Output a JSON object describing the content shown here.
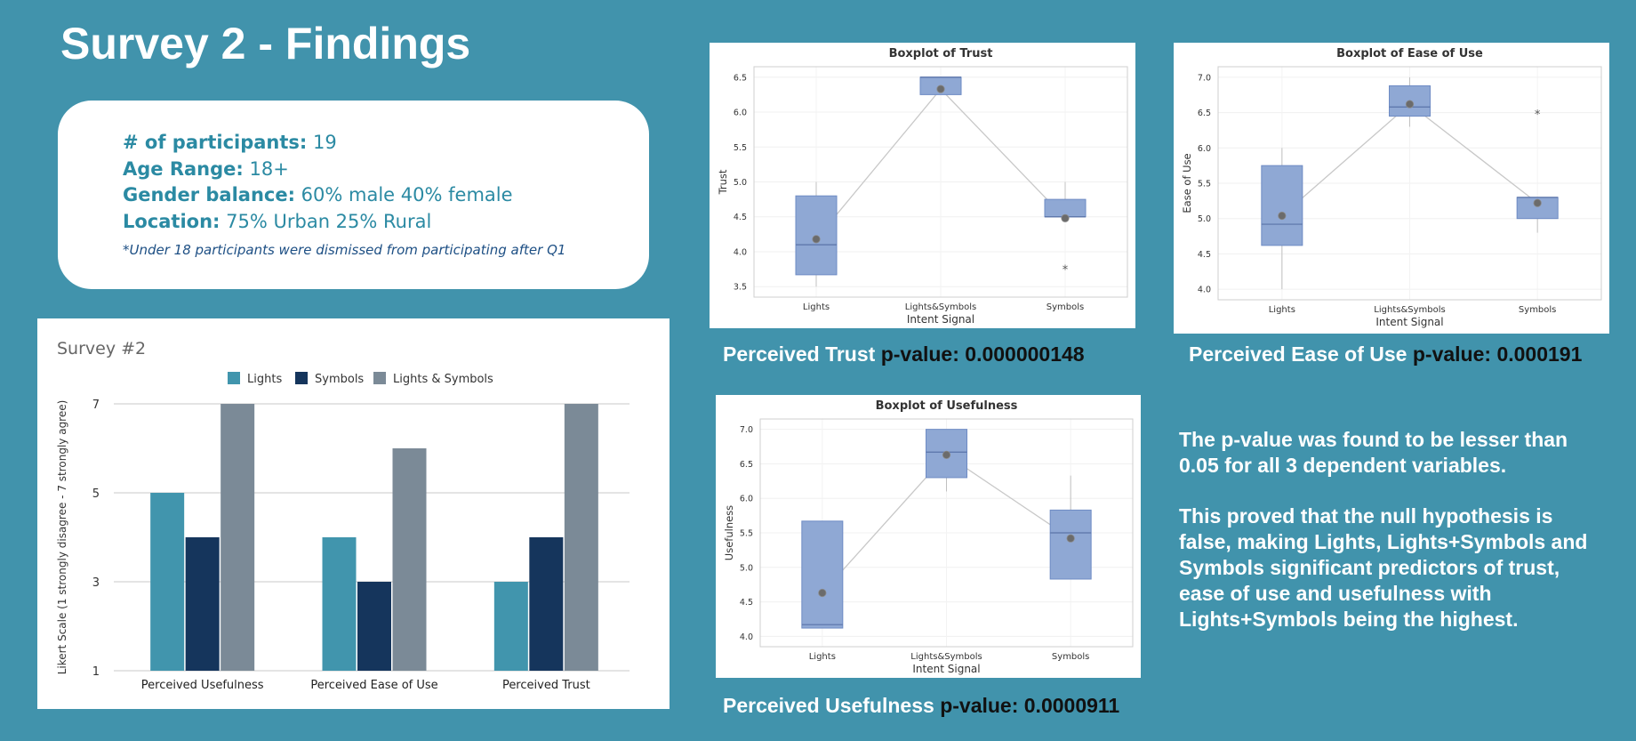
{
  "page": {
    "title": "Survey 2 - Findings"
  },
  "info": {
    "participants_label": "# of participants:",
    "participants_value": "19",
    "age_label": "Age Range:",
    "age_value": "18+",
    "gender_label": "Gender balance:",
    "gender_value": "60% male 40% female",
    "location_label": "Location:",
    "location_value": "75% Urban 25% Rural",
    "note": "*Under 18 participants were dismissed from participating after Q1"
  },
  "colors": {
    "lights": "#4195ad",
    "symbols": "#15355c",
    "both": "#7b8a97",
    "box_fill": "#8fa8d4",
    "box_stroke": "#6e8bc4",
    "mean_dot": "#6b6b6b"
  },
  "captions": {
    "trust_label": "Perceived Trust",
    "trust_p": "p-value: 0.000000148",
    "ease_label": "Perceived Ease of Use",
    "ease_p": "p-value: 0.000191",
    "usefulness_label": "Perceived Usefulness",
    "usefulness_p": "p-value: 0.0000911"
  },
  "conclusion": {
    "para1": "The p-value was found to be lesser than 0.05 for all 3 dependent variables.",
    "para2": "This proved that the null hypothesis is false, making Lights, Lights+Symbols and Symbols significant predictors of trust, ease of use and usefulness with Lights+Symbols being the highest."
  },
  "chart_data": [
    {
      "id": "survey_bar",
      "type": "bar",
      "title": "Survey #2",
      "categories": [
        "Perceived Usefulness",
        "Perceived Ease of Use",
        "Perceived Trust"
      ],
      "series": [
        {
          "name": "Lights",
          "values": [
            5,
            4,
            3
          ]
        },
        {
          "name": "Symbols",
          "values": [
            4,
            3,
            4
          ]
        },
        {
          "name": "Lights & Symbols",
          "values": [
            7,
            6,
            7
          ]
        }
      ],
      "xlabel": "",
      "ylabel": "Likert Scale (1 strongly disagree - 7 strongly agree)",
      "ylim": [
        1,
        7
      ],
      "yticks": [
        1,
        3,
        5,
        7
      ],
      "legend": "top"
    },
    {
      "id": "trust_box",
      "type": "box",
      "title": "Boxplot of Trust",
      "xlabel": "Intent Signal",
      "ylabel": "Trust",
      "categories": [
        "Lights",
        "Lights&Symbols",
        "Symbols"
      ],
      "ylim": [
        3.35,
        6.65
      ],
      "yticks": [
        3.5,
        4.0,
        4.5,
        5.0,
        5.5,
        6.0,
        6.5
      ],
      "boxes": [
        {
          "min": 3.5,
          "q1": 3.67,
          "median": 4.1,
          "q3": 4.8,
          "max": 5.0,
          "mean": 4.18,
          "outliers": []
        },
        {
          "min": 6.25,
          "q1": 6.25,
          "median": 6.5,
          "q3": 6.5,
          "max": 6.5,
          "mean": 6.33,
          "outliers": []
        },
        {
          "min": 4.5,
          "q1": 4.5,
          "median": 4.5,
          "q3": 4.75,
          "max": 5.0,
          "mean": 4.48,
          "outliers": [
            3.75
          ]
        }
      ]
    },
    {
      "id": "ease_box",
      "type": "box",
      "title": "Boxplot of Ease of Use",
      "xlabel": "Intent Signal",
      "ylabel": "Ease of Use",
      "categories": [
        "Lights",
        "Lights&Symbols",
        "Symbols"
      ],
      "ylim": [
        3.85,
        7.15
      ],
      "yticks": [
        4.0,
        4.5,
        5.0,
        5.5,
        6.0,
        6.5,
        7.0
      ],
      "boxes": [
        {
          "min": 4.0,
          "q1": 4.62,
          "median": 4.92,
          "q3": 5.75,
          "max": 6.0,
          "mean": 5.04,
          "outliers": []
        },
        {
          "min": 6.3,
          "q1": 6.45,
          "median": 6.58,
          "q3": 6.88,
          "max": 7.0,
          "mean": 6.62,
          "outliers": []
        },
        {
          "min": 4.8,
          "q1": 5.0,
          "median": 5.3,
          "q3": 5.3,
          "max": 5.3,
          "mean": 5.22,
          "outliers": [
            6.48
          ]
        }
      ]
    },
    {
      "id": "usefulness_box",
      "type": "box",
      "title": "Boxplot of Usefulness",
      "xlabel": "Intent Signal",
      "ylabel": "Usefulness",
      "categories": [
        "Lights",
        "Lights&Symbols",
        "Symbols"
      ],
      "ylim": [
        3.85,
        7.15
      ],
      "yticks": [
        4.0,
        4.5,
        5.0,
        5.5,
        6.0,
        6.5,
        7.0
      ],
      "boxes": [
        {
          "min": 4.12,
          "q1": 4.12,
          "median": 4.17,
          "q3": 5.67,
          "max": 5.67,
          "mean": 4.63,
          "outliers": []
        },
        {
          "min": 6.1,
          "q1": 6.3,
          "median": 6.67,
          "q3": 7.0,
          "max": 7.0,
          "mean": 6.63,
          "outliers": []
        },
        {
          "min": 4.83,
          "q1": 4.83,
          "median": 5.5,
          "q3": 5.83,
          "max": 6.33,
          "mean": 5.42,
          "outliers": []
        }
      ]
    }
  ]
}
